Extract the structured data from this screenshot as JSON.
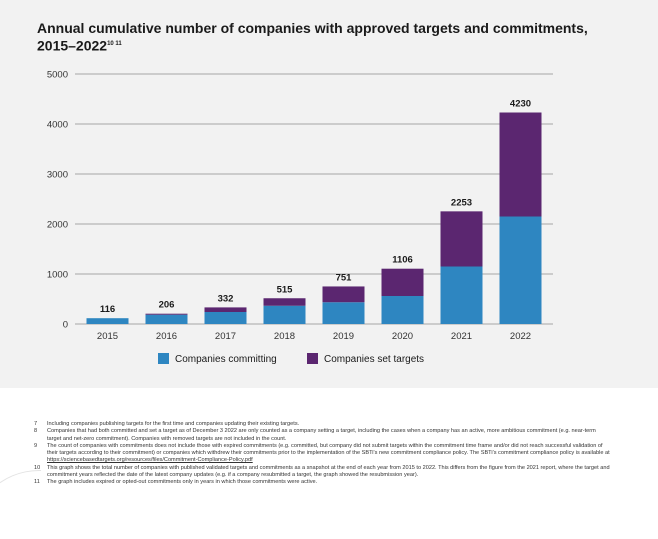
{
  "chart_data": {
    "type": "bar",
    "stacked": true,
    "title": "Annual cumulative number of companies with approved targets and commitments, 2015–2022",
    "title_footnote_refs": "10 11",
    "categories": [
      "2015",
      "2016",
      "2017",
      "2018",
      "2019",
      "2020",
      "2021",
      "2022"
    ],
    "series": [
      {
        "name": "Companies committing",
        "color": "#2e86c1",
        "values": [
          116,
          186,
          240,
          365,
          435,
          560,
          1150,
          2150
        ]
      },
      {
        "name": "Companies set targets",
        "color": "#5b2670",
        "values": [
          0,
          20,
          92,
          150,
          316,
          546,
          1103,
          2080
        ]
      }
    ],
    "totals": [
      116,
      206,
      332,
      515,
      751,
      1106,
      2253,
      4230
    ],
    "total_labels": [
      "116",
      "206",
      "332",
      "515",
      "751",
      "1106",
      "2253",
      "4230"
    ],
    "ylim": [
      0,
      5000
    ],
    "yticks": [
      0,
      1000,
      2000,
      3000,
      4000,
      5000
    ],
    "ytick_labels": [
      "0",
      "1000",
      "2000",
      "3000",
      "4000",
      "5000"
    ],
    "grid": true,
    "legend_position": "bottom",
    "xlabel": "",
    "ylabel": ""
  },
  "footnotes": [
    {
      "num": "7",
      "text": "Including companies publishing targets for the first time and companies updating their existing targets."
    },
    {
      "num": "8",
      "text": "Companies that had both committed and set a target as of December 3 2022 are only counted as a company setting a target, including the cases when a company has an active, more ambitious commitment (e.g. near-term target and net-zero commitment). Companies with removed targets are not included in the count."
    },
    {
      "num": "9",
      "text": "The count of companies with commitments does not include those with expired commitments (e.g. committed, but company did not submit targets within the commitment time frame and/or did not reach successful validation of their targets according to their commitment) or companies which withdrew their commitments prior to the implementation of the SBTi's new commitment compliance policy. The SBTi's commitment compliance policy is available at ",
      "link": "https://sciencebasedtargets.org/resources/files/Commitment-Compliance-Policy.pdf"
    },
    {
      "num": "10",
      "text": "This graph shows the total number of companies with published validated targets and commitments as a snapshot at the end of each year from 2015 to 2022. This differs from the figure from the 2021 report, where the target and commitment years reflected the date of the latest company updates (e.g. if a company resubmitted a target, the graph showed the resubmission year)."
    },
    {
      "num": "11",
      "text": "The graph includes expired or opted-out commitments only in years in which those commitments were active."
    }
  ]
}
